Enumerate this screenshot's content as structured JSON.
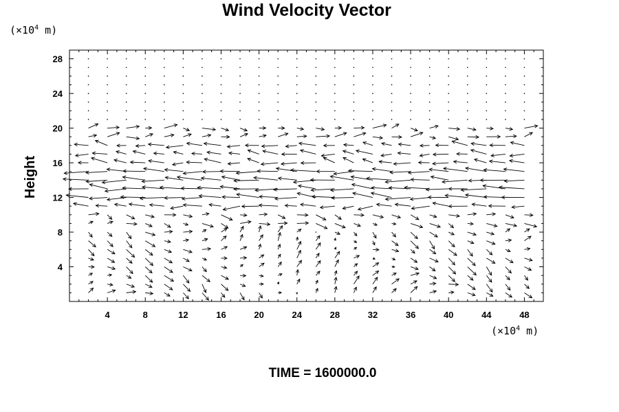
{
  "chart_data": {
    "type": "vector-field",
    "title": "Wind Velocity Vector",
    "ylabel": "Height",
    "xlabel": "",
    "y_unit": {
      "prefix": "(×10",
      "exp": "4",
      "suffix": " m)"
    },
    "x_unit": {
      "prefix": "(×10",
      "exp": "4",
      "suffix": " m)"
    },
    "xlim": [
      0,
      50
    ],
    "ylim": [
      0,
      29
    ],
    "x_ticks": [
      4,
      8,
      12,
      16,
      20,
      24,
      28,
      32,
      36,
      40,
      44,
      48
    ],
    "y_ticks": [
      4,
      8,
      12,
      16,
      20,
      24,
      28
    ],
    "grid": {
      "dx": 2,
      "dy": 1,
      "x0": 2,
      "y0": 1
    },
    "layers": [
      {
        "range": [
          21,
          29
        ],
        "description": "calm aloft",
        "u": 0.0,
        "v": 0.0
      },
      {
        "range": [
          19,
          20
        ],
        "u": 1.2,
        "v": 0.1
      },
      {
        "range": [
          16,
          18
        ],
        "u": -1.6,
        "v": 0.2
      },
      {
        "range": [
          12,
          15
        ],
        "u": -2.6,
        "v": 0.1
      },
      {
        "range": [
          11,
          11
        ],
        "u": -1.8,
        "v": 0.0
      },
      {
        "range": [
          9,
          10
        ],
        "u": 1.0,
        "v": -0.2
      },
      {
        "range": [
          1,
          8
        ],
        "u": 0.6,
        "v": 0.4
      }
    ]
  },
  "footer": {
    "label": "TIME = 1600000.0"
  }
}
